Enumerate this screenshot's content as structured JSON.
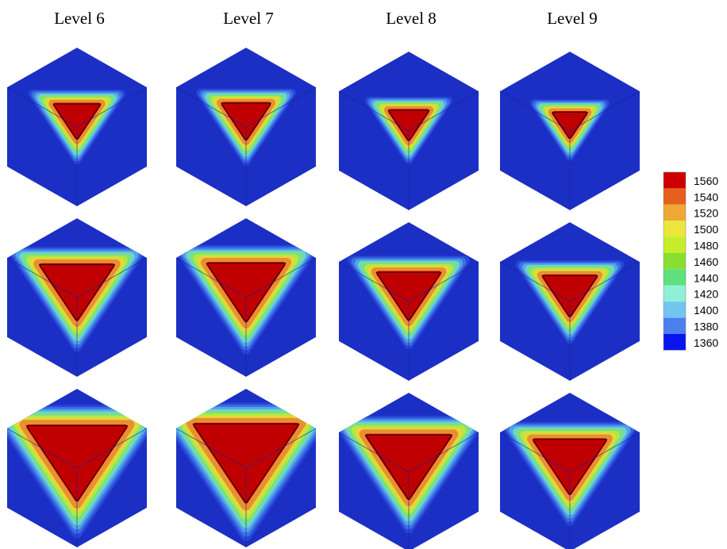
{
  "columns": [
    "Level 6",
    "Level 7",
    "Level 8",
    "Level 9"
  ],
  "colorbar": {
    "labels": [
      "1560",
      "1540",
      "1520",
      "1500",
      "1480",
      "1460",
      "1440",
      "1420",
      "1400",
      "1380",
      "1360"
    ],
    "colors": [
      "#cc0000",
      "#e4601c",
      "#efa834",
      "#eae63e",
      "#c4ee2a",
      "#8ade32",
      "#5ee07c",
      "#8ef0d6",
      "#74c4f0",
      "#4c7ef0",
      "#0a14ee"
    ]
  }
}
